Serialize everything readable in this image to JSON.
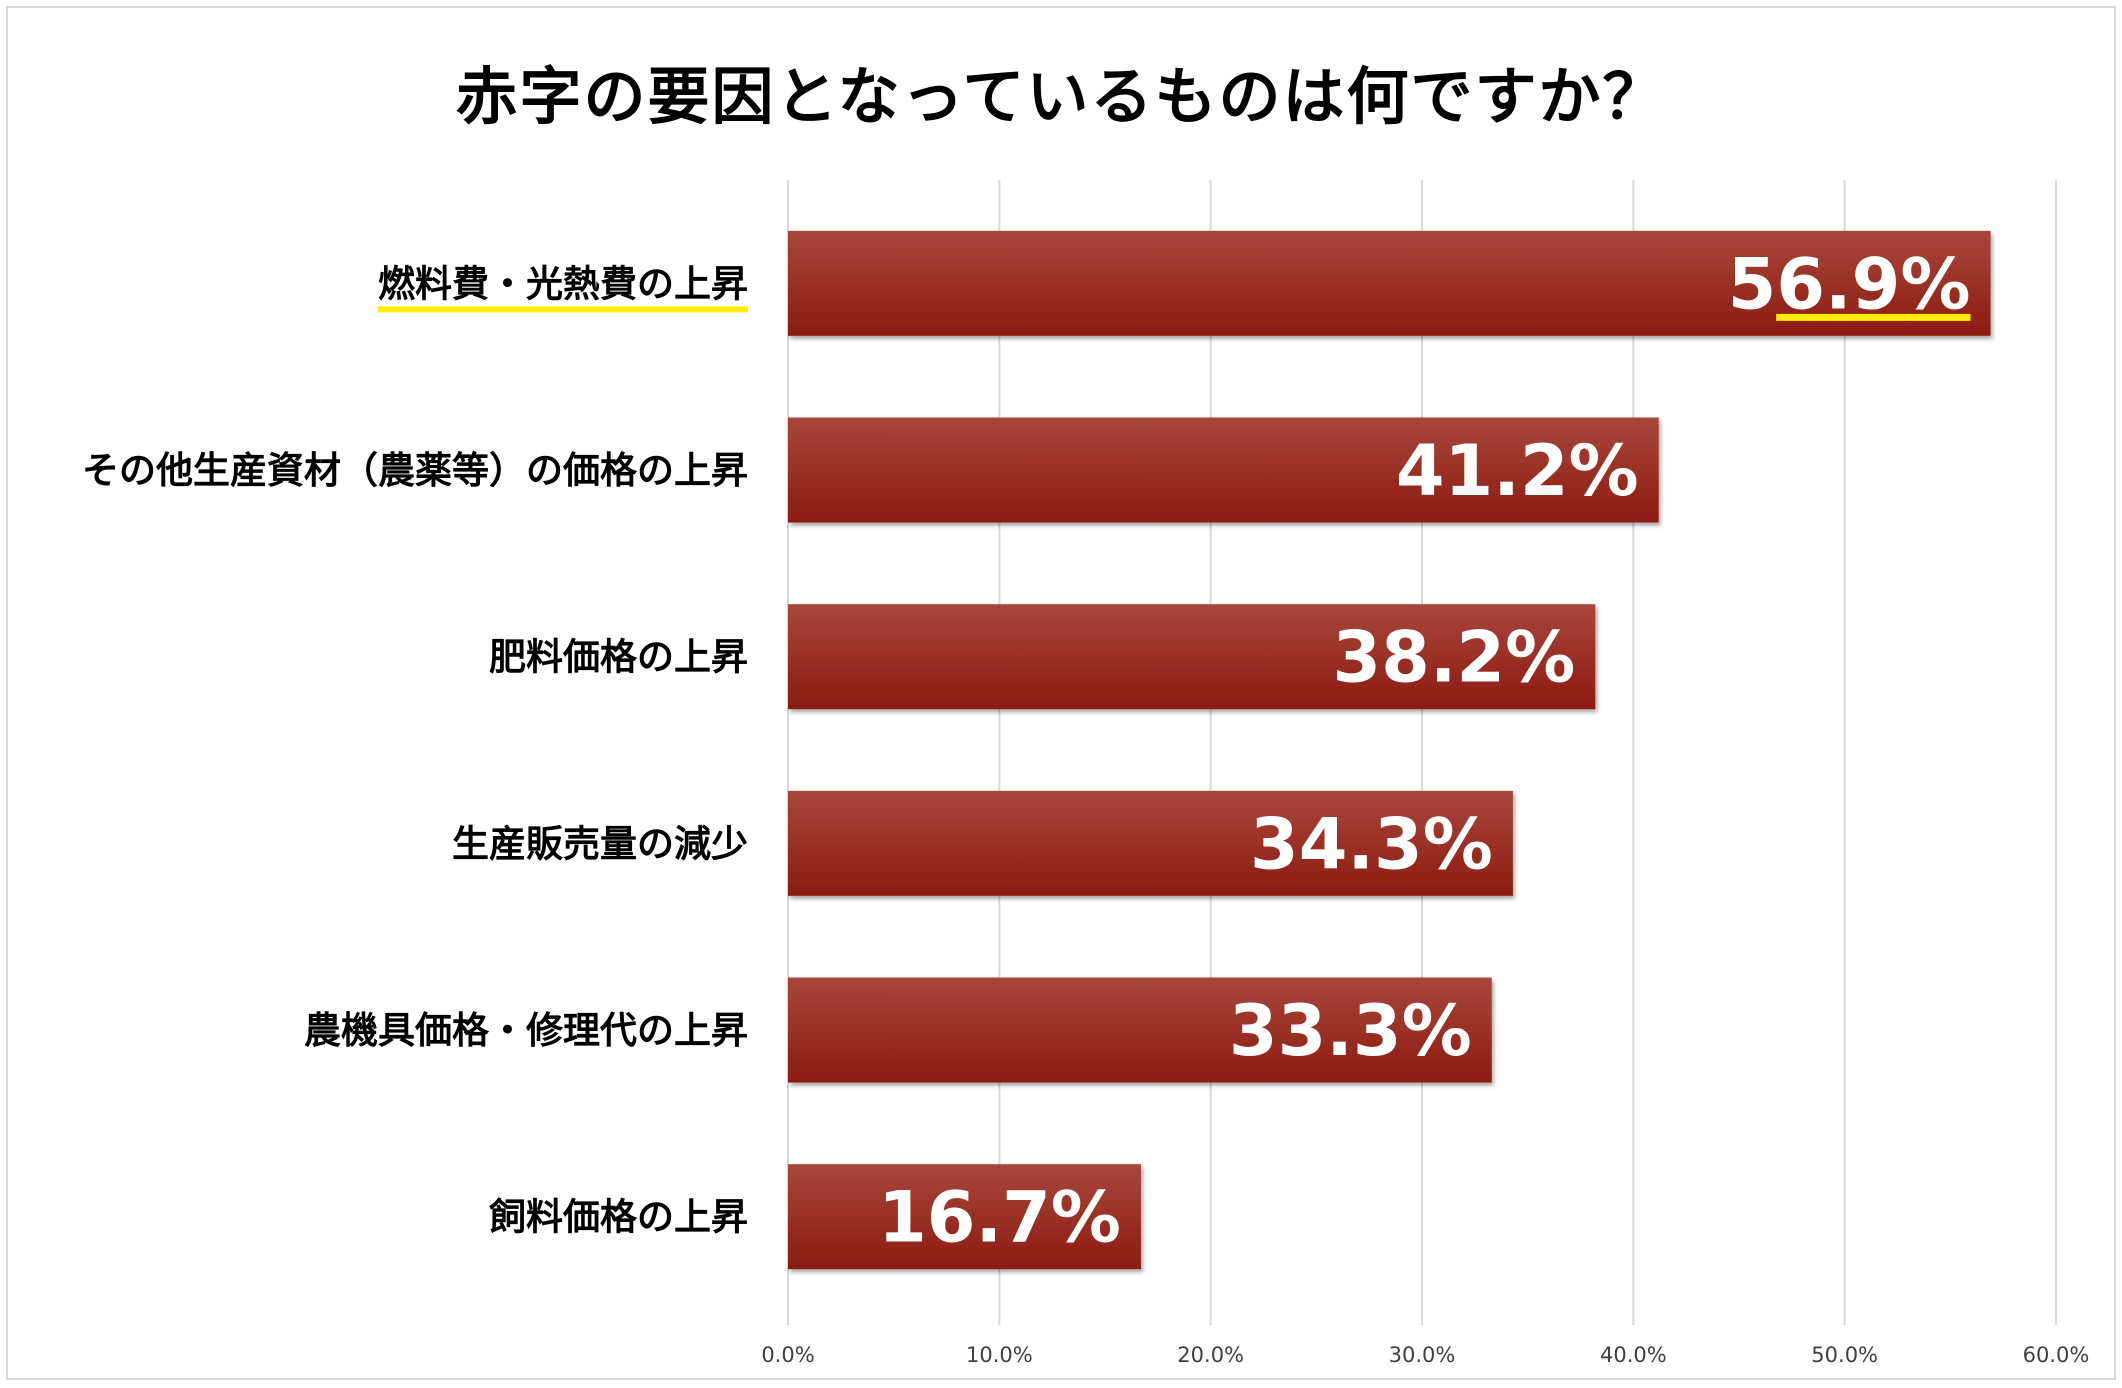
{
  "chart_data": {
    "type": "bar",
    "orientation": "horizontal",
    "title": "赤字の要因となっているものは何ですか？",
    "categories": [
      "燃料費・光熱費の上昇",
      "その他生産資材（農薬等）の価格の上昇",
      "肥料価格の上昇",
      "生産販売量の減少",
      "農機具価格・修理代の上昇",
      "飼料価格の上昇"
    ],
    "values": [
      56.9,
      41.2,
      38.2,
      34.3,
      33.3,
      16.7
    ],
    "value_labels": [
      "56.9%",
      "41.2%",
      "38.2%",
      "34.3%",
      "33.3%",
      "16.7%"
    ],
    "xlim": [
      0,
      60
    ],
    "x_ticks": [
      "0.0%",
      "10.0%",
      "20.0%",
      "30.0%",
      "40.0%",
      "50.0%",
      "60.0%"
    ],
    "grid": true,
    "legend": "none",
    "highlighted_category_index": 0,
    "colors": {
      "bar_top": "#a8463b",
      "bar_bottom": "#8c1b10",
      "highlight": "#ffee00",
      "grid": "#d9d9d9"
    }
  }
}
